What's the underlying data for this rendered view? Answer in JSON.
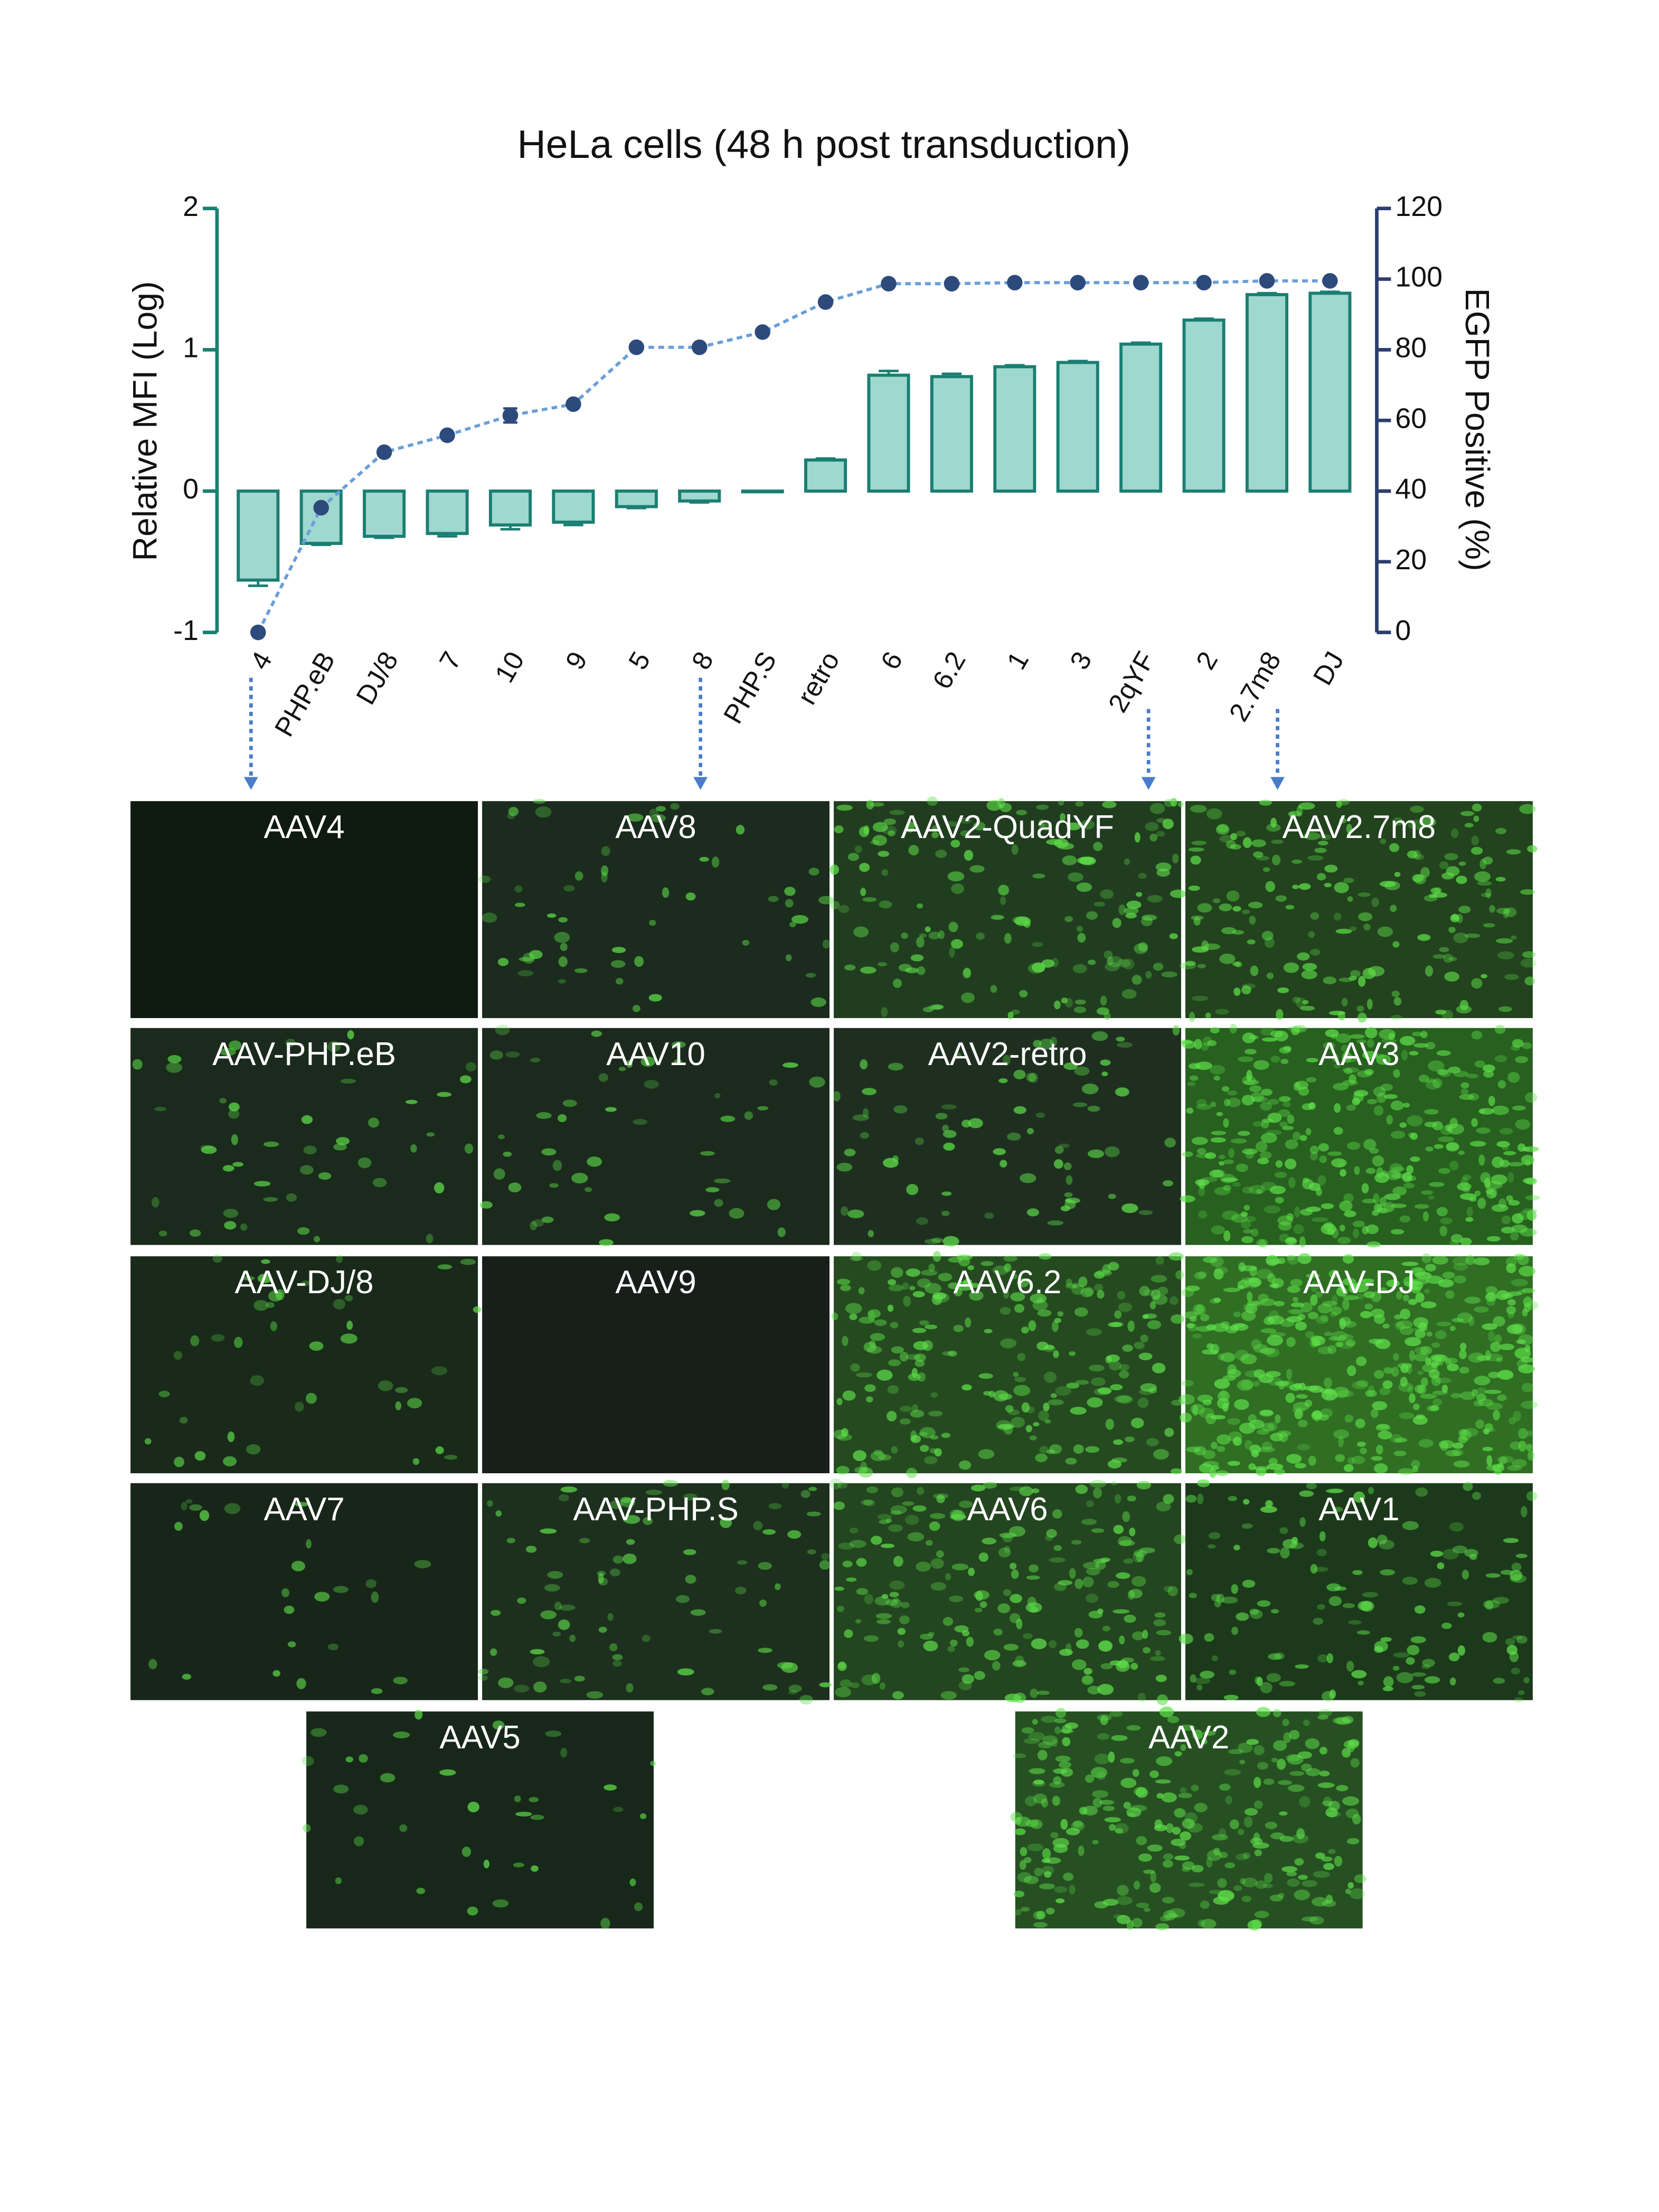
{
  "chart_data": {
    "type": "combo",
    "title": "HeLa cells (48 h post transduction)",
    "ylabel": "Relative MFI  (Log)",
    "y2label": "EGFP Positive (%)",
    "categories": [
      "4",
      "PHP.eB",
      "DJ/8",
      "7",
      "10",
      "9",
      "5",
      "8",
      "PHP.S",
      "retro",
      "6",
      "6.2",
      "1",
      "3",
      "2qYF",
      "2",
      "2.7m8",
      "DJ"
    ],
    "ylim": [
      -1,
      2
    ],
    "yticks": [
      -1,
      0,
      1,
      2
    ],
    "y2lim": [
      0,
      120
    ],
    "y2ticks": [
      0,
      20,
      40,
      60,
      80,
      100,
      120
    ],
    "series": [
      {
        "type": "bar",
        "color": "#9fd8ce",
        "edge": "#1a7f72",
        "values": [
          -0.63,
          -0.37,
          -0.32,
          -0.3,
          -0.24,
          -0.22,
          -0.11,
          -0.07,
          0.0,
          0.22,
          0.82,
          0.81,
          0.88,
          0.91,
          1.04,
          1.21,
          1.39,
          1.4
        ],
        "errors": [
          0.04,
          0.01,
          0.01,
          0.02,
          0.03,
          0.02,
          0.01,
          0.01,
          0.0,
          0.01,
          0.03,
          0.02,
          0.01,
          0.01,
          0.01,
          0.01,
          0.01,
          0.01
        ]
      },
      {
        "type": "line",
        "axis": "y2",
        "color": "#2d4a7c",
        "line_color": "#6a9fd8",
        "values": [
          0,
          35.3,
          51,
          55.8,
          61.4,
          64.6,
          80.7,
          80.7,
          85,
          93.5,
          98.7,
          98.7,
          99,
          99,
          99,
          99,
          99.5,
          99.5
        ],
        "errors": [
          0,
          0,
          0,
          0,
          2,
          0,
          0,
          0,
          0,
          0,
          0,
          0,
          0,
          0,
          0,
          0,
          0,
          0
        ]
      }
    ]
  },
  "panels": [
    {
      "label": "AAV4",
      "color": "#0f1a10"
    },
    {
      "label": "AAV8",
      "color": "#1b2b1d"
    },
    {
      "label": "AAV2-QuadYF",
      "color": "#213d1f"
    },
    {
      "label": "AAV2.7m8",
      "color": "#22431d"
    },
    {
      "label": "AAV-PHP.eB",
      "color": "#1a2a1c"
    },
    {
      "label": "AAV10",
      "color": "#1b2a1d"
    },
    {
      "label": "AAV2-retro",
      "color": "#1e2f20"
    },
    {
      "label": "AAV3",
      "color": "#27601f"
    },
    {
      "label": "AAV-DJ/8",
      "color": "#19291a"
    },
    {
      "label": "AAV9",
      "color": "#181f1a"
    },
    {
      "label": "AAV6.2",
      "color": "#254a20"
    },
    {
      "label": "AAV-DJ",
      "color": "#2f6e23"
    },
    {
      "label": "AAV7",
      "color": "#18261a"
    },
    {
      "label": "AAV-PHP.S",
      "color": "#1d301e"
    },
    {
      "label": "AAV6",
      "color": "#23451f"
    },
    {
      "label": "AAV1",
      "color": "#1c3a1b"
    },
    {
      "label": "AAV5",
      "color": "#17281a"
    },
    {
      "label": "AAV2",
      "color": "#265022"
    }
  ]
}
